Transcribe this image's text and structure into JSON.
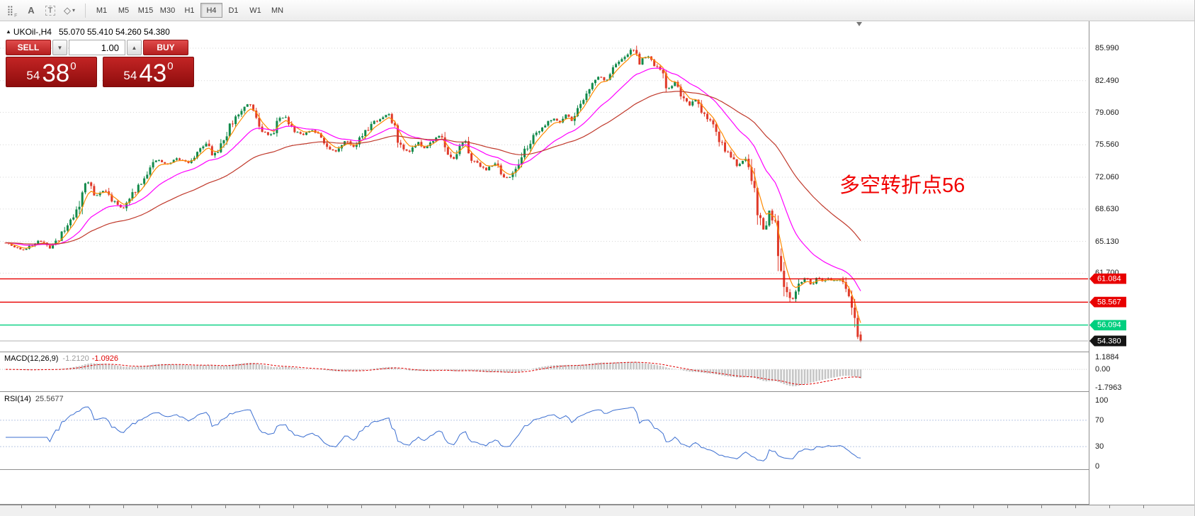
{
  "toolbar": {
    "tool_icons": [
      {
        "name": "toolbar-grip-icon",
        "glyph": "⣿",
        "sub": "F"
      },
      {
        "name": "text-tool-icon",
        "glyph": "A"
      },
      {
        "name": "textbox-tool-icon",
        "glyph": "T"
      },
      {
        "name": "shapes-tool-icon",
        "glyph": "◇",
        "caret": "▾"
      }
    ],
    "timeframes": [
      "M1",
      "M5",
      "M15",
      "M30",
      "H1",
      "H4",
      "D1",
      "W1",
      "MN"
    ],
    "active_timeframe": "H4"
  },
  "trade_panel": {
    "sell_label": "SELL",
    "buy_label": "BUY",
    "volume": "1.00",
    "volume_down_icon": "▼",
    "volume_up_icon": "▲",
    "sell_price": {
      "small": "54",
      "big": "38",
      "sup": "0"
    },
    "buy_price": {
      "small": "54",
      "big": "43",
      "sup": "0"
    }
  },
  "chart": {
    "marker_icon": "▲",
    "symbol_label": "UKOil-,H4",
    "ohlc_text": "55.070 55.410 54.260 54.380",
    "annotation": {
      "text": "多空转折点56",
      "color": "#f10000"
    }
  },
  "chart_data": {
    "type": "candlestick",
    "symbol": "UKOil-",
    "timeframe": "H4",
    "visible_ohlc": {
      "open": 55.07,
      "high": 55.41,
      "low": 54.26,
      "close": 54.38
    },
    "y_axis_ticks": [
      "85.990",
      "82.490",
      "79.060",
      "75.560",
      "72.060",
      "68.630",
      "65.130",
      "61.700"
    ],
    "price_levels": [
      {
        "label": "61.084",
        "value": 61.084,
        "color": "#e80000"
      },
      {
        "label": "58.567",
        "value": 58.567,
        "color": "#e80000"
      },
      {
        "label": "56.094",
        "value": 56.094,
        "color": "#00cf7f"
      }
    ],
    "current_price": {
      "label": "54.380",
      "value": 54.38,
      "color": "#141414"
    },
    "candle_count": 291,
    "seed": 11,
    "up_color": "#128a4a",
    "down_color": "#e03a2a",
    "moving_averages": [
      {
        "period": 5,
        "color": "#ff8a00"
      },
      {
        "period": 21,
        "color": "#ff00ff"
      },
      {
        "period": 55,
        "color": "#c0392b"
      }
    ],
    "price_path": [
      [
        0,
        65.3
      ],
      [
        20,
        64.5
      ],
      [
        35,
        64.2
      ],
      [
        55,
        65.3
      ],
      [
        70,
        64.4
      ],
      [
        85,
        65.6
      ],
      [
        100,
        67.5
      ],
      [
        112,
        69.0
      ],
      [
        120,
        71.3
      ],
      [
        127,
        71.6
      ],
      [
        135,
        70.0
      ],
      [
        148,
        70.7
      ],
      [
        160,
        69.4
      ],
      [
        175,
        68.7
      ],
      [
        190,
        70.6
      ],
      [
        205,
        72.3
      ],
      [
        222,
        74.0
      ],
      [
        235,
        73.4
      ],
      [
        250,
        74.1
      ],
      [
        265,
        73.6
      ],
      [
        280,
        74.8
      ],
      [
        290,
        75.8
      ],
      [
        300,
        74.2
      ],
      [
        312,
        75.4
      ],
      [
        325,
        77.6
      ],
      [
        340,
        79.2
      ],
      [
        352,
        80.2
      ],
      [
        362,
        78.8
      ],
      [
        372,
        76.9
      ],
      [
        382,
        76.4
      ],
      [
        392,
        78.2
      ],
      [
        402,
        78.6
      ],
      [
        415,
        77.1
      ],
      [
        428,
        76.7
      ],
      [
        440,
        77.1
      ],
      [
        452,
        76.5
      ],
      [
        465,
        75.1
      ],
      [
        475,
        74.9
      ],
      [
        488,
        76.1
      ],
      [
        498,
        75.3
      ],
      [
        512,
        76.6
      ],
      [
        525,
        77.9
      ],
      [
        538,
        78.4
      ],
      [
        548,
        79.0
      ],
      [
        558,
        77.0
      ],
      [
        568,
        75.0
      ],
      [
        578,
        74.9
      ],
      [
        590,
        75.9
      ],
      [
        600,
        75.2
      ],
      [
        612,
        76.1
      ],
      [
        622,
        76.6
      ],
      [
        632,
        74.9
      ],
      [
        640,
        73.9
      ],
      [
        650,
        75.4
      ],
      [
        658,
        75.9
      ],
      [
        668,
        73.8
      ],
      [
        678,
        73.3
      ],
      [
        688,
        72.8
      ],
      [
        698,
        73.7
      ],
      [
        708,
        72.2
      ],
      [
        718,
        71.9
      ],
      [
        728,
        73.1
      ],
      [
        738,
        74.7
      ],
      [
        750,
        76.1
      ],
      [
        762,
        77.3
      ],
      [
        772,
        77.9
      ],
      [
        782,
        78.4
      ],
      [
        790,
        78.0
      ],
      [
        798,
        78.9
      ],
      [
        806,
        78.1
      ],
      [
        815,
        79.4
      ],
      [
        825,
        80.9
      ],
      [
        835,
        82.1
      ],
      [
        845,
        83.0
      ],
      [
        855,
        82.4
      ],
      [
        865,
        83.8
      ],
      [
        875,
        84.6
      ],
      [
        885,
        85.3
      ],
      [
        895,
        86.0
      ],
      [
        903,
        84.2
      ],
      [
        912,
        85.2
      ],
      [
        922,
        84.3
      ],
      [
        932,
        83.6
      ],
      [
        942,
        81.4
      ],
      [
        952,
        82.4
      ],
      [
        962,
        81.0
      ],
      [
        972,
        79.6
      ],
      [
        982,
        80.4
      ],
      [
        992,
        79.0
      ],
      [
        1002,
        78.2
      ],
      [
        1012,
        77.0
      ],
      [
        1022,
        75.0
      ],
      [
        1032,
        74.3
      ],
      [
        1042,
        73.2
      ],
      [
        1052,
        74.0
      ],
      [
        1062,
        72.0
      ],
      [
        1070,
        68.5
      ],
      [
        1078,
        66.3
      ],
      [
        1086,
        68.4
      ],
      [
        1094,
        67.3
      ],
      [
        1100,
        64.0
      ],
      [
        1106,
        61.0
      ],
      [
        1112,
        59.8
      ],
      [
        1118,
        58.8
      ],
      [
        1124,
        59.6
      ],
      [
        1130,
        60.8
      ],
      [
        1138,
        61.2
      ],
      [
        1146,
        60.4
      ],
      [
        1152,
        61.3
      ],
      [
        1160,
        60.8
      ],
      [
        1168,
        61.2
      ],
      [
        1176,
        60.9
      ],
      [
        1184,
        61.0
      ],
      [
        1192,
        60.2
      ],
      [
        1200,
        58.8
      ],
      [
        1207,
        56.8
      ],
      [
        1212,
        55.2
      ],
      [
        1215,
        54.4
      ]
    ],
    "indicators": {
      "macd": {
        "label": "MACD(12,26,9)",
        "value_main": "-1.2120",
        "value_signal": "-1.0926",
        "axis_ticks": [
          "1.1884",
          "0.00",
          "-1.7963"
        ],
        "histogram_color": "#c6c6c6",
        "signal_color": "#e00000"
      },
      "rsi": {
        "label": "RSI(14)",
        "value": "25.5677",
        "axis_ticks": [
          "100",
          "70",
          "30",
          "0"
        ],
        "levels": [
          70,
          30
        ],
        "line_color": "#3c6fd1"
      }
    }
  }
}
